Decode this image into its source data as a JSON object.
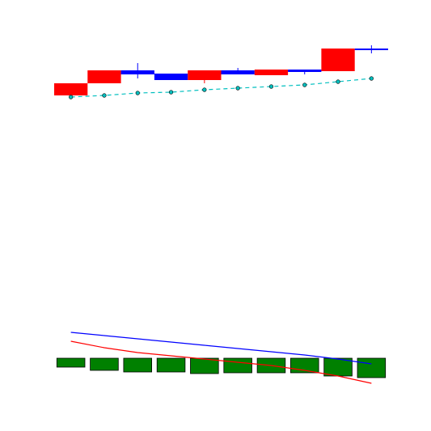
{
  "chart_data": [
    {
      "type": "candlestick",
      "x": [
        1,
        2,
        3,
        4,
        5,
        6,
        7,
        8,
        9,
        10
      ],
      "xlim": [
        0.5,
        10.5
      ],
      "ylim": [
        0,
        100
      ],
      "open": [
        12,
        27,
        43,
        39,
        31,
        43,
        37,
        44,
        42,
        70
      ],
      "close": [
        27,
        43,
        38,
        31,
        43,
        38,
        44,
        41,
        70,
        68
      ],
      "high": [
        27,
        43,
        52,
        39,
        43,
        46,
        44,
        44,
        70,
        74
      ],
      "low": [
        12,
        27,
        33,
        31,
        27,
        38,
        37,
        38,
        42,
        64
      ],
      "up_color": "#ff0000",
      "down_color": "#0000ff",
      "series": [
        {
          "color": "#00bfbf",
          "values": [
            10,
            12,
            15,
            16,
            19,
            21,
            23,
            25,
            29,
            33
          ]
        }
      ]
    },
    {
      "type": "range_bar",
      "x": [
        1,
        2,
        3,
        4,
        5,
        6,
        7,
        8,
        9,
        10
      ],
      "xlim": [
        0.5,
        10.5
      ],
      "ylim": [
        0,
        100
      ],
      "low": [
        26,
        22,
        20,
        20,
        18,
        19,
        19,
        19,
        15,
        13
      ],
      "high": [
        37,
        37,
        37,
        37,
        37,
        37,
        37,
        37,
        37,
        37
      ],
      "color": "#008000",
      "series": [
        {
          "color": "#0000ff",
          "values": [
            69,
            65,
            61,
            57,
            53,
            49,
            45,
            41,
            36,
            30
          ]
        },
        {
          "color": "#ff0000",
          "values": [
            58,
            50,
            44,
            40,
            36,
            32,
            28,
            22,
            15,
            6
          ]
        }
      ]
    }
  ]
}
